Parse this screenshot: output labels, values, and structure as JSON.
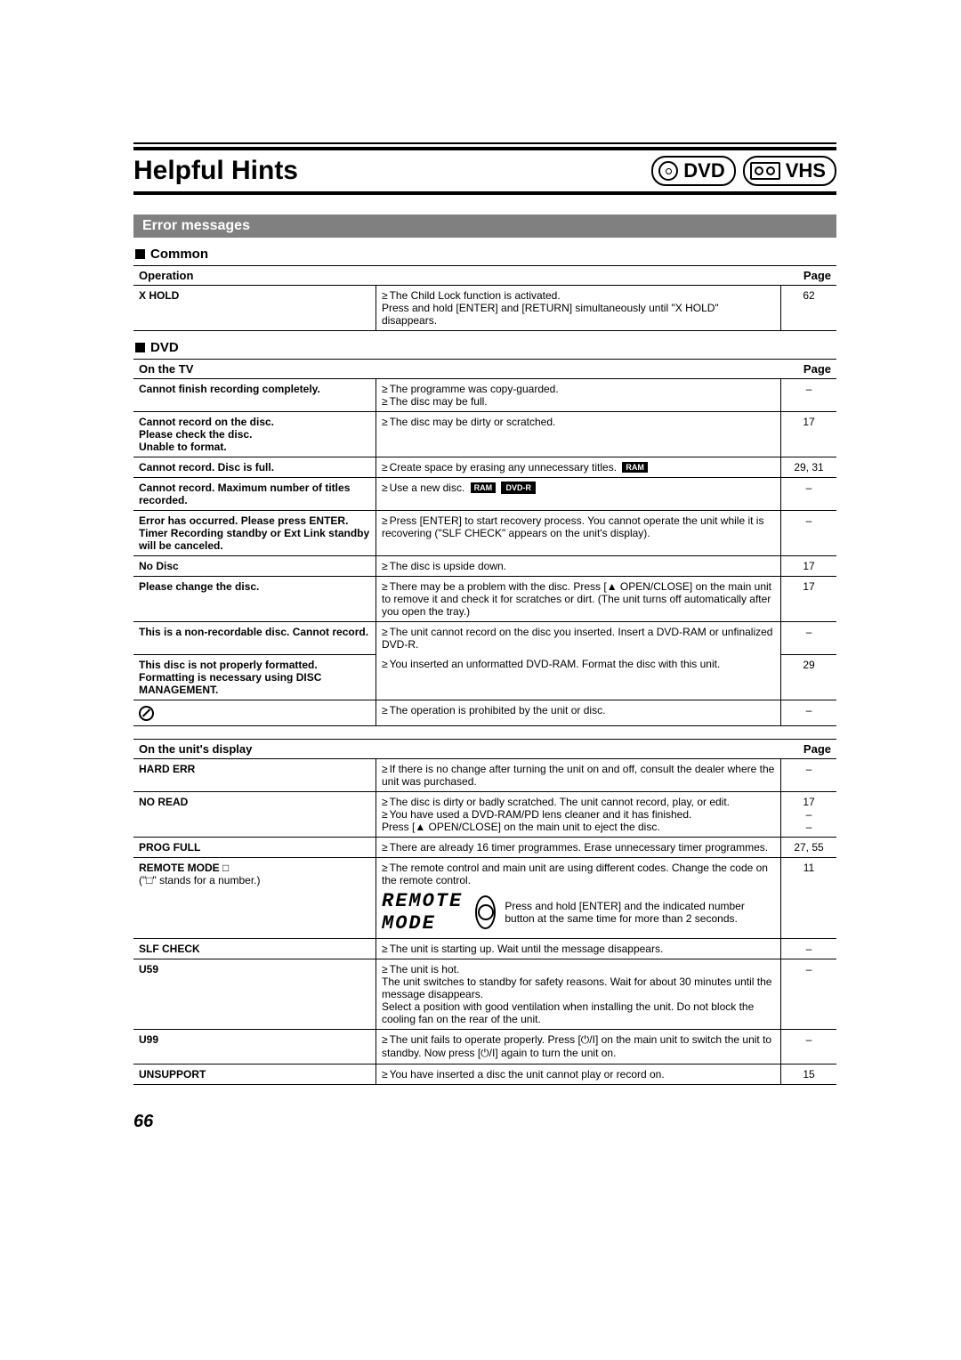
{
  "header": {
    "title": "Helpful Hints",
    "badge_dvd": "DVD",
    "badge_vhs": "VHS"
  },
  "section_bar": "Error messages",
  "common": {
    "heading": "Common",
    "col_left": "Operation",
    "col_right": "Page",
    "rows": [
      {
        "left": "X HOLD",
        "mid": [
          "The Child Lock function is activated.",
          "Press and hold [ENTER] and [RETURN] simultaneously until \"X HOLD\" disappears."
        ],
        "mid_bullet_first_only": true,
        "page": "62"
      }
    ]
  },
  "dvd": {
    "heading": "DVD",
    "tv_label": "On the TV",
    "col_right": "Page",
    "tv_rows": [
      {
        "left": "Cannot finish recording completely.",
        "mid": [
          "The programme was copy-guarded.",
          "The disc may be full."
        ],
        "page": "–"
      },
      {
        "left": "Cannot record on the disc.\nPlease check the disc.\nUnable to format.",
        "mid": [
          "The disc may be dirty or scratched."
        ],
        "page": "17"
      },
      {
        "left": "Cannot record. Disc is full.",
        "mid_html": "Create space by erasing any unnecessary titles. <span class=\"tag\">RAM</span>",
        "page": "29, 31"
      },
      {
        "left": "Cannot record. Maximum number of titles recorded.",
        "mid_html": "Use a new disc. <span class=\"tag\">RAM</span> <span class=\"tag inv\">DVD-R</span>",
        "page": "–"
      },
      {
        "left": "Error has occurred. Please press ENTER. Timer Recording standby or Ext Link standby will be canceled.",
        "mid": [
          "Press [ENTER] to start recovery process. You cannot operate the unit while it is recovering (\"SLF CHECK\" appears on the unit's display)."
        ],
        "page": "–"
      },
      {
        "left": "No Disc",
        "mid": [
          "The disc is upside down."
        ],
        "page": "17"
      },
      {
        "left": "Please change the disc.",
        "mid": [
          "There may be a problem with the disc. Press [▲ OPEN/CLOSE] on the main unit to remove it and check it for scratches or dirt. (The unit turns off automatically after you open the tray.)"
        ],
        "page": "17"
      },
      {
        "left": "This is a non-recordable disc. Cannot record.",
        "mid": [
          "The unit cannot record on the disc you inserted. Insert a DVD-RAM or unfinalized DVD-R."
        ],
        "page": "–",
        "no_bottom": true
      },
      {
        "left": "This disc is not properly formatted. Formatting is necessary using DISC MANAGEMENT.",
        "mid": [
          "You inserted an unformatted DVD-RAM. Format the disc with this unit."
        ],
        "page": "29",
        "continue_top": true
      },
      {
        "left_icon": "prohibit",
        "mid": [
          "The operation is prohibited by the unit or disc."
        ],
        "page": "–"
      }
    ],
    "disp_label": "On the unit's display",
    "disp_rows": [
      {
        "left": "HARD ERR",
        "mid": [
          "If there is no change after turning the unit on and off, consult the dealer where the unit was purchased."
        ],
        "page": "–"
      },
      {
        "left": "NO READ",
        "mid": [
          "The disc is dirty or badly scratched. The unit cannot record, play, or edit.",
          "You have used a DVD-RAM/PD lens cleaner and it has finished.",
          "Press [▲ OPEN/CLOSE] on the main unit to eject the disc."
        ],
        "mid_third_no_bullet": true,
        "page": "17\n–\n–"
      },
      {
        "left": "PROG FULL",
        "mid": [
          "There are already 16 timer programmes. Erase unnecessary timer programmes."
        ],
        "page": "27, 55"
      },
      {
        "left": "REMOTE MODE □",
        "left_sub": "(\"□\" stands for a number.)",
        "mid_remote_lead": "The remote control and main unit are using different codes. Change the code on the remote control.",
        "mid_remote_text": "Press and hold [ENTER] and the indicated number button at the same time for more than 2 seconds.",
        "remote_display": "REMOTE MODE",
        "page": "11"
      },
      {
        "left": "SLF CHECK",
        "mid": [
          "The unit is starting up. Wait until the message disappears."
        ],
        "page": "–"
      },
      {
        "left": "U59",
        "mid": [
          "The unit is hot.",
          "The unit switches to standby for safety reasons. Wait for about 30 minutes until the message disappears.",
          "Select a position with good ventilation when installing the unit. Do not block the cooling fan on the rear of the unit."
        ],
        "mid_single_bullet": true,
        "page": "–"
      },
      {
        "left": "U99",
        "mid": [
          "The unit fails to operate properly. Press [⏻/I] on the main unit to switch the unit to standby. Now press [⏻/I] again to turn the unit on."
        ],
        "page": "–"
      },
      {
        "left": "UNSUPPORT",
        "mid": [
          "You have inserted a disc the unit cannot play or record on."
        ],
        "page": "15"
      }
    ]
  },
  "page_number": "66"
}
